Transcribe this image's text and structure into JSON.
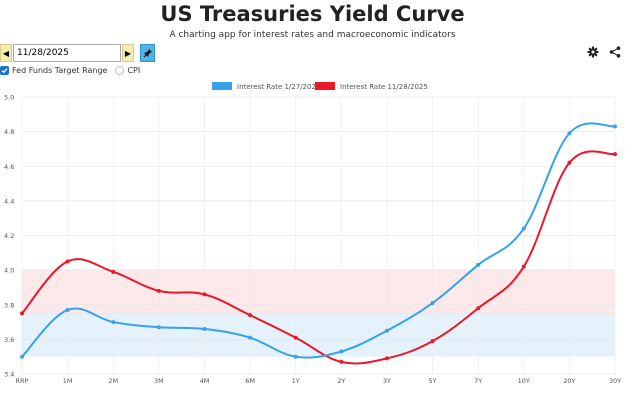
{
  "header": {
    "title": "US Treasuries Yield Curve",
    "subtitle": "A charting app for interest rates and macroeconomic indicators"
  },
  "date_picker": {
    "value": "11/28/2025",
    "prev_icon": "triangle-left-icon",
    "next_icon": "triangle-right-icon",
    "pin_icon": "pin-icon"
  },
  "toolbar": {
    "settings_icon": "gear-icon",
    "share_icon": "share-icon"
  },
  "options": {
    "fed_funds": {
      "label": "Fed Funds Target Range",
      "checked": true
    },
    "cpi": {
      "label": "CPI",
      "checked": false
    }
  },
  "colors": {
    "series_blue": "#36a2eb",
    "series_red": "#e8192c",
    "band_blue": "#e5f2fb",
    "band_red": "#fde8ea",
    "band_red_border": "#f5b6bd",
    "band_blue_border": "#bfdff2"
  },
  "chart_data": {
    "type": "line",
    "categories": [
      "RRP",
      "1M",
      "2M",
      "3M",
      "4M",
      "6M",
      "1Y",
      "2Y",
      "3Y",
      "5Y",
      "7Y",
      "10Y",
      "20Y",
      "30Y"
    ],
    "ylim": [
      3.4,
      5.0
    ],
    "yticks": [
      "3.4",
      "3.6",
      "3.8",
      "4.0",
      "4.2",
      "4.4",
      "4.6",
      "4.8",
      "5.0"
    ],
    "grid": true,
    "legend_position": "top",
    "series": [
      {
        "name": "Interest Rate 1/27/2026",
        "color": "#36a2eb",
        "values": [
          3.5,
          3.77,
          3.7,
          3.67,
          3.66,
          3.61,
          3.5,
          3.53,
          3.65,
          3.81,
          4.03,
          4.24,
          4.79,
          4.83
        ]
      },
      {
        "name": "Interest Rate 11/28/2025",
        "color": "#e8192c",
        "values": [
          3.75,
          4.05,
          3.99,
          3.88,
          3.86,
          3.74,
          3.61,
          3.47,
          3.49,
          3.59,
          3.78,
          4.02,
          4.62,
          4.67
        ]
      }
    ],
    "bands": [
      {
        "name": "fed-funds-range-current",
        "low": 3.5,
        "high": 3.75
      },
      {
        "name": "fed-funds-range-previous",
        "low": 3.75,
        "high": 4.0
      }
    ]
  }
}
